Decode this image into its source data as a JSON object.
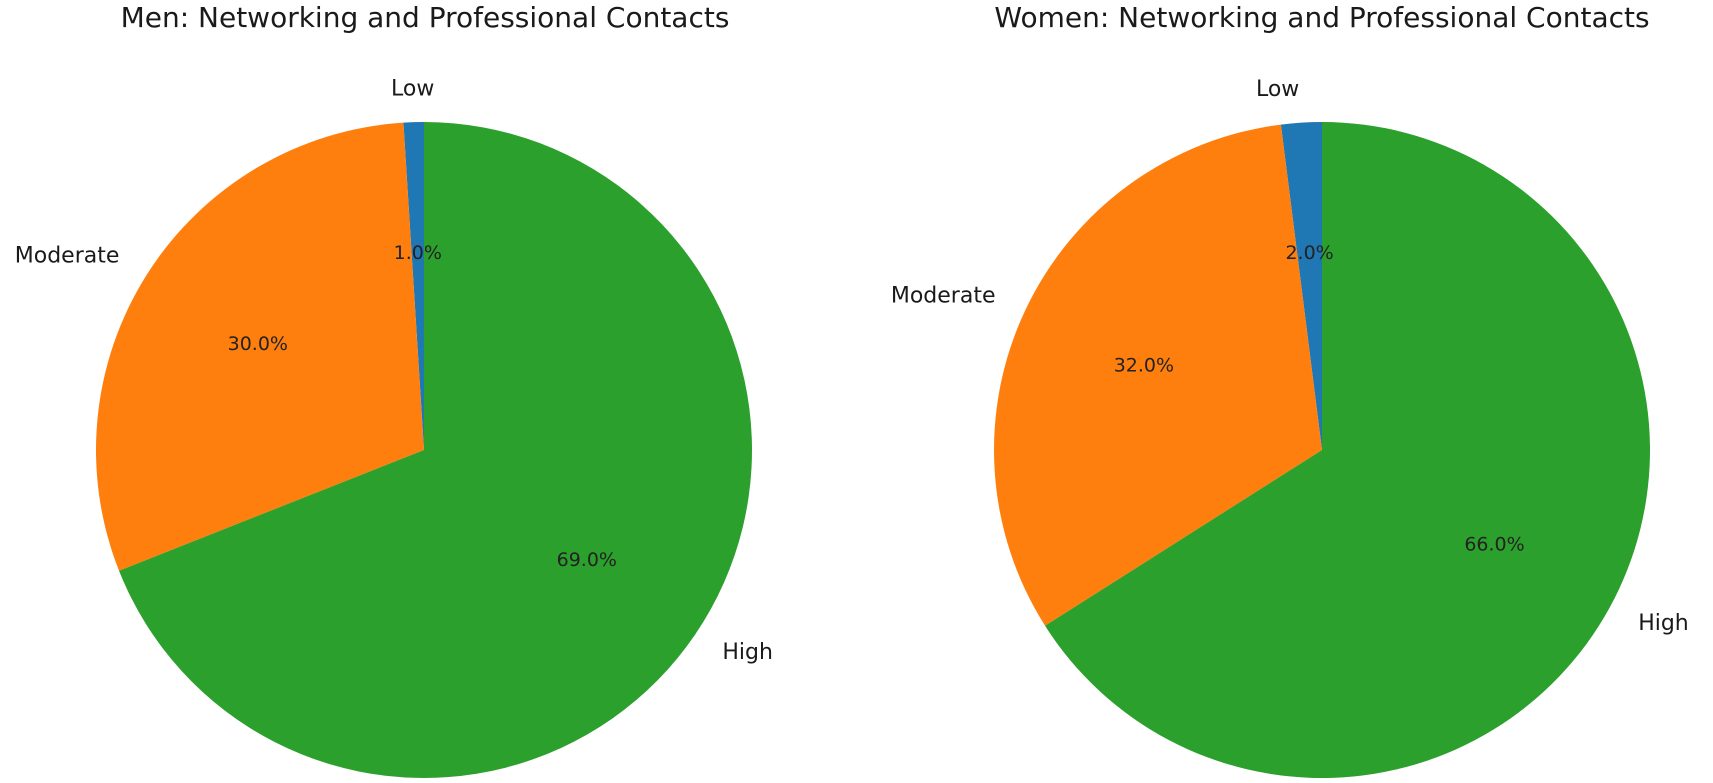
{
  "chart_data": [
    {
      "type": "pie",
      "title": "Men: Networking and Professional Contacts",
      "categories": [
        "Low",
        "Moderate",
        "High"
      ],
      "values": [
        1.0,
        30.0,
        69.0
      ],
      "value_labels": [
        "1.0%",
        "30.0%",
        "69.0%"
      ],
      "colors": [
        "#1f77b4",
        "#ff7f0e",
        "#2ca02c"
      ],
      "start_angle_deg": 90,
      "direction": "counterclockwise",
      "legend": "none"
    },
    {
      "type": "pie",
      "title": "Women: Networking and Professional Contacts",
      "categories": [
        "Low",
        "Moderate",
        "High"
      ],
      "values": [
        2.0,
        32.0,
        66.0
      ],
      "value_labels": [
        "2.0%",
        "32.0%",
        "66.0%"
      ],
      "colors": [
        "#1f77b4",
        "#ff7f0e",
        "#2ca02c"
      ],
      "start_angle_deg": 90,
      "direction": "counterclockwise",
      "legend": "none"
    }
  ]
}
